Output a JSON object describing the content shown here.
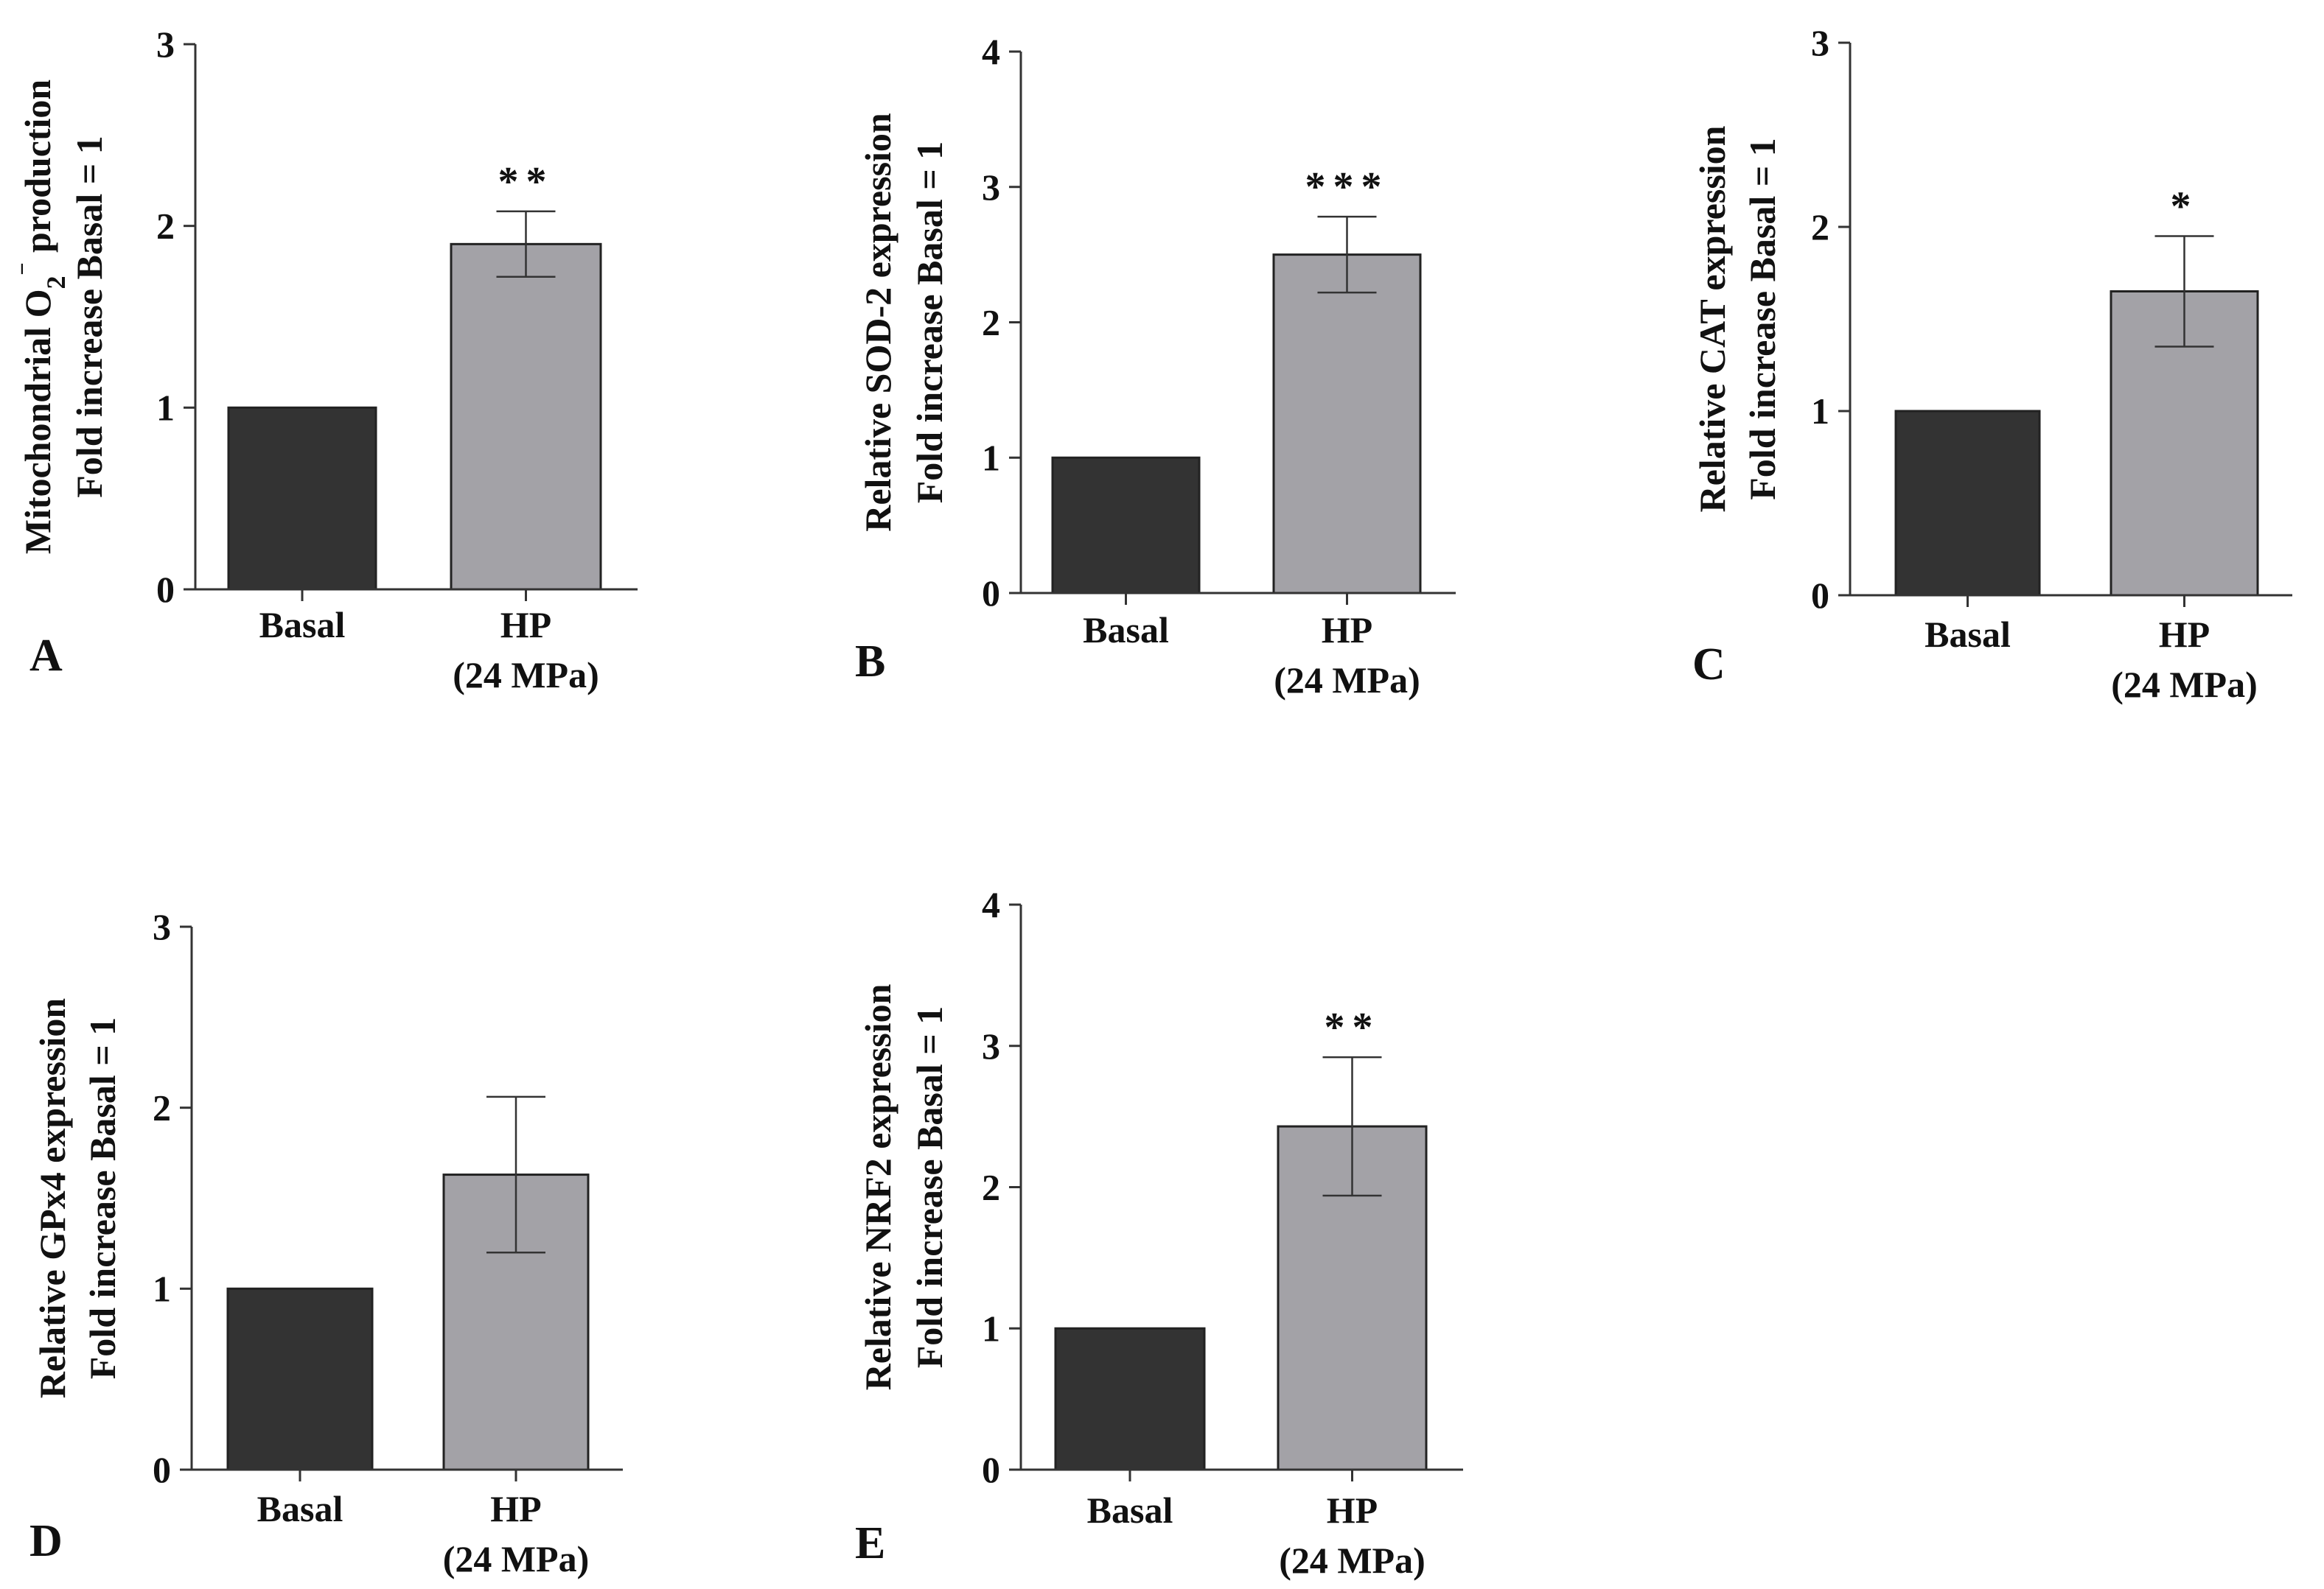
{
  "colors": {
    "basal": "#333333",
    "hp": "#a3a2a7",
    "axis": "#333333",
    "text": "#111111"
  },
  "chart_data": [
    {
      "panel": "A",
      "type": "bar",
      "ylabel": [
        "Mitochondrial O",
        "2",
        "⁻",
        " production"
      ],
      "ylabel2": "Fold increase Basal = 1",
      "categories": [
        "Basal",
        "HP|(24 MPa)"
      ],
      "values": [
        1.0,
        1.9
      ],
      "errors": [
        0,
        0.18
      ],
      "significance": [
        "",
        "**"
      ],
      "ylim": [
        0,
        3
      ],
      "yticks": [
        0,
        1,
        2,
        3
      ]
    },
    {
      "panel": "B",
      "type": "bar",
      "ylabel": "Relative SOD-2 expression",
      "ylabel2": "Fold increase Basal = 1",
      "categories": [
        "Basal",
        "HP|(24 MPa)"
      ],
      "values": [
        1.0,
        2.5
      ],
      "errors": [
        0,
        0.28
      ],
      "significance": [
        "",
        "***"
      ],
      "ylim": [
        0,
        4
      ],
      "yticks": [
        0,
        1,
        2,
        3,
        4
      ]
    },
    {
      "panel": "C",
      "type": "bar",
      "ylabel": "Relative CAT expression",
      "ylabel2": "Fold increase Basal = 1",
      "categories": [
        "Basal",
        "HP|(24 MPa)"
      ],
      "values": [
        1.0,
        1.65
      ],
      "errors": [
        0,
        0.3
      ],
      "significance": [
        "",
        "*"
      ],
      "ylim": [
        0,
        3
      ],
      "yticks": [
        0,
        1,
        2,
        3
      ]
    },
    {
      "panel": "D",
      "type": "bar",
      "ylabel": "Relative GPx4 expression",
      "ylabel2": "Fold increase Basal = 1",
      "categories": [
        "Basal",
        "HP|(24 MPa)"
      ],
      "values": [
        1.0,
        1.63
      ],
      "errors": [
        0,
        0.43
      ],
      "significance": [
        "",
        ""
      ],
      "ylim": [
        0,
        3
      ],
      "yticks": [
        0,
        1,
        2,
        3
      ]
    },
    {
      "panel": "E",
      "type": "bar",
      "ylabel": "Relative NRF2 expression",
      "ylabel2": "Fold increase Basal = 1",
      "categories": [
        "Basal",
        "HP|(24 MPa)"
      ],
      "values": [
        1.0,
        2.43
      ],
      "errors": [
        0,
        0.49
      ],
      "significance": [
        "",
        "**"
      ],
      "ylim": [
        0,
        4
      ],
      "yticks": [
        0,
        1,
        2,
        3,
        4
      ]
    }
  ]
}
